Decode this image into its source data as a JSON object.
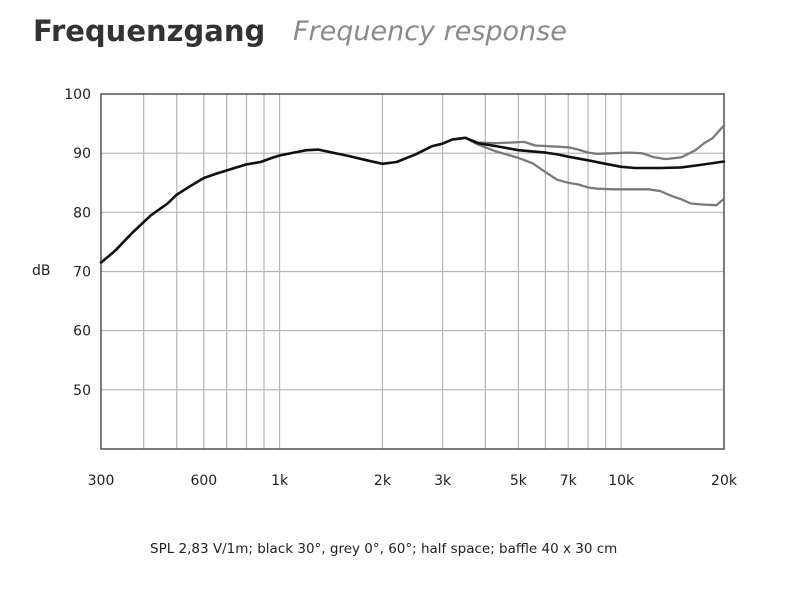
{
  "header": {
    "title": "Frequenzgang",
    "subtitle": "Frequency response"
  },
  "caption": "SPL 2,83 V/1m; black 30°, grey 0°, 60°; half space; baffle 40 x 30 cm",
  "colors": {
    "black_curve": "#111111",
    "grey_curve": "#7a7a7a",
    "grid": "#b5b5b5",
    "frame": "#444444"
  },
  "chart_data": {
    "type": "line",
    "x_scale": "log",
    "xlim": [
      300,
      20000
    ],
    "ylim": [
      40,
      100
    ],
    "ylabel": "dB",
    "y_ticks": [
      {
        "value": 100,
        "label": "100"
      },
      {
        "value": 90,
        "label": "90"
      },
      {
        "value": 80,
        "label": "80"
      },
      {
        "value": 70,
        "label": "70"
      },
      {
        "value": 60,
        "label": "60"
      },
      {
        "value": 50,
        "label": "50"
      }
    ],
    "x_ticks": [
      {
        "value": 300,
        "label": "300"
      },
      {
        "value": 600,
        "label": "600"
      },
      {
        "value": 1000,
        "label": "1k"
      },
      {
        "value": 2000,
        "label": "2k"
      },
      {
        "value": 3000,
        "label": "3k"
      },
      {
        "value": 5000,
        "label": "5k"
      },
      {
        "value": 7000,
        "label": "7k"
      },
      {
        "value": 10000,
        "label": "10k"
      },
      {
        "value": 20000,
        "label": "20k"
      }
    ],
    "grid": true,
    "series": [
      {
        "color": "#111111",
        "points": [
          [
            300,
            71.5
          ],
          [
            330,
            73.5
          ],
          [
            370,
            76.5
          ],
          [
            420,
            79.5
          ],
          [
            470,
            81.5
          ],
          [
            500,
            83
          ],
          [
            550,
            84.5
          ],
          [
            600,
            85.8
          ],
          [
            650,
            86.5
          ],
          [
            720,
            87.3
          ],
          [
            800,
            88.1
          ],
          [
            880,
            88.5
          ],
          [
            950,
            89.2
          ],
          [
            1000,
            89.6
          ],
          [
            1100,
            90.1
          ],
          [
            1200,
            90.5
          ],
          [
            1300,
            90.6
          ],
          [
            1400,
            90.2
          ],
          [
            1600,
            89.5
          ],
          [
            1800,
            88.8
          ],
          [
            2000,
            88.2
          ],
          [
            2200,
            88.5
          ],
          [
            2500,
            89.8
          ],
          [
            2800,
            91.2
          ],
          [
            3000,
            91.6
          ],
          [
            3200,
            92.3
          ],
          [
            3500,
            92.6
          ],
          [
            3800,
            91.7
          ],
          [
            4300,
            91.2
          ],
          [
            5000,
            90.5
          ],
          [
            5500,
            90.3
          ],
          [
            6000,
            90.1
          ],
          [
            6500,
            89.8
          ],
          [
            7000,
            89.4
          ],
          [
            8000,
            88.8
          ],
          [
            9000,
            88.2
          ],
          [
            10000,
            87.7
          ],
          [
            11000,
            87.5
          ],
          [
            13000,
            87.5
          ],
          [
            15000,
            87.6
          ],
          [
            17000,
            88.0
          ],
          [
            20000,
            88.6
          ]
        ]
      },
      {
        "color": "#7a7a7a",
        "points": [
          [
            3500,
            92.6
          ],
          [
            3800,
            91.8
          ],
          [
            4300,
            91.7
          ],
          [
            4800,
            91.8
          ],
          [
            5200,
            91.9
          ],
          [
            5600,
            91.3
          ],
          [
            6500,
            91.1
          ],
          [
            7000,
            91.0
          ],
          [
            7500,
            90.6
          ],
          [
            8000,
            90.1
          ],
          [
            8500,
            89.9
          ],
          [
            9500,
            90.0
          ],
          [
            10500,
            90.1
          ],
          [
            11500,
            90.0
          ],
          [
            12500,
            89.3
          ],
          [
            13500,
            89.0
          ],
          [
            15000,
            89.3
          ],
          [
            16500,
            90.5
          ],
          [
            17500,
            91.7
          ],
          [
            18500,
            92.5
          ],
          [
            20000,
            94.7
          ]
        ]
      },
      {
        "color": "#7a7a7a",
        "points": [
          [
            3500,
            92.6
          ],
          [
            3800,
            91.5
          ],
          [
            4300,
            90.3
          ],
          [
            5000,
            89.2
          ],
          [
            5500,
            88.3
          ],
          [
            6000,
            86.8
          ],
          [
            6500,
            85.5
          ],
          [
            7000,
            85.0
          ],
          [
            7500,
            84.7
          ],
          [
            8000,
            84.2
          ],
          [
            8500,
            84.0
          ],
          [
            9500,
            83.9
          ],
          [
            11000,
            83.9
          ],
          [
            12000,
            83.9
          ],
          [
            13000,
            83.6
          ],
          [
            14000,
            82.8
          ],
          [
            15000,
            82.2
          ],
          [
            16000,
            81.5
          ],
          [
            17500,
            81.3
          ],
          [
            19000,
            81.2
          ],
          [
            20000,
            82.3
          ]
        ]
      }
    ]
  }
}
